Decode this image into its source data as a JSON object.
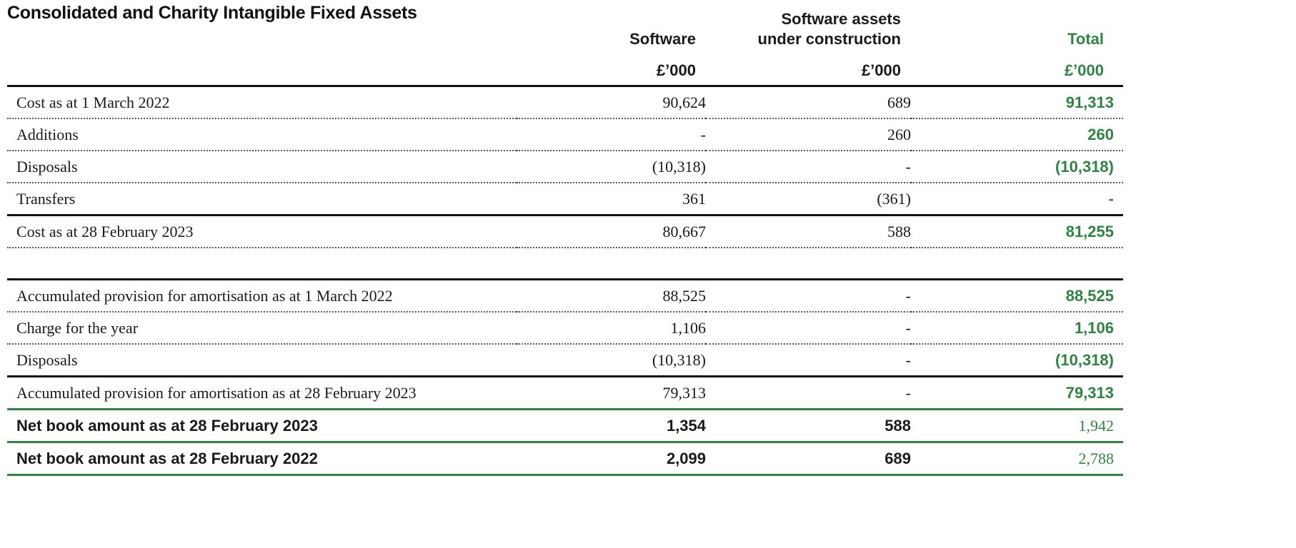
{
  "title": "Consolidated and Charity Intangible Fixed Assets",
  "columns": {
    "software": {
      "label": "Software",
      "unit": "£’000"
    },
    "suc": {
      "label_line1": "Software assets",
      "label_line2": "under construction",
      "unit": "£’000"
    },
    "total": {
      "label": "Total",
      "unit": "£’000"
    }
  },
  "rows": [
    {
      "label": "Cost as at 1 March 2022",
      "software": "90,624",
      "suc": "689",
      "total": "91,313"
    },
    {
      "label": "Additions",
      "software": "-",
      "suc": "260",
      "total": "260"
    },
    {
      "label": "Disposals",
      "software": "(10,318)",
      "suc": "-",
      "total": "(10,318)"
    },
    {
      "label": "Transfers",
      "software": "361",
      "suc": "(361)",
      "total": "-"
    },
    {
      "label": "Cost as at 28 February 2023",
      "software": "80,667",
      "suc": "588",
      "total": "81,255"
    },
    {
      "label": "Accumulated provision for amortisation as at 1 March 2022",
      "software": "88,525",
      "suc": "-",
      "total": "88,525"
    },
    {
      "label": "Charge for the year",
      "software": "1,106",
      "suc": "-",
      "total": "1,106"
    },
    {
      "label": "Disposals",
      "software": "(10,318)",
      "suc": "-",
      "total": "(10,318)"
    },
    {
      "label": "Accumulated provision for amortisation as at 28 February 2023",
      "software": "79,313",
      "suc": "-",
      "total": "79,313"
    },
    {
      "label": "Net book amount as at 28 February 2023",
      "software": "1,354",
      "suc": "588",
      "total": "1,942"
    },
    {
      "label": "Net book amount as at 28 February 2022",
      "software": "2,099",
      "suc": "689",
      "total": "2,788"
    }
  ],
  "colors": {
    "accent_green": "#2e8540",
    "rule": "#111111"
  }
}
